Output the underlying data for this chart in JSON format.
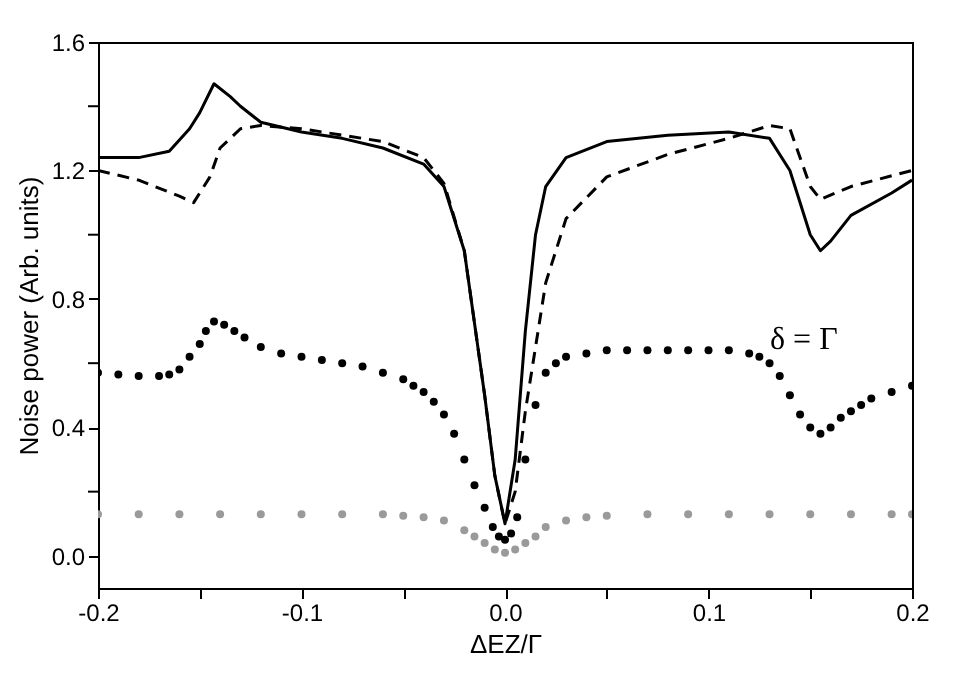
{
  "chart_data": {
    "type": "line",
    "xlabel": "ΔEZ/Γ",
    "ylabel": "Noise power (Arb. units)",
    "annotations": [
      "δ = Γ"
    ],
    "xlim": [
      -0.2,
      0.2
    ],
    "ylim": [
      -0.1,
      1.6
    ],
    "xticks": [
      -0.2,
      {
        "value": -0.15,
        "label": null
      },
      -0.1,
      {
        "value": -0.05,
        "label": null
      },
      {
        "value": 0,
        "label": "0.0"
      },
      {
        "value": 0.05,
        "label": null
      },
      0.1,
      {
        "value": 0.15,
        "label": null
      },
      0.2
    ],
    "yticks": [
      {
        "value": 0,
        "label": "0.0"
      },
      {
        "value": 0.2,
        "label": null
      },
      0.4,
      {
        "value": 0.6,
        "label": null
      },
      0.8,
      {
        "value": 1.0,
        "label": null
      },
      1.2,
      {
        "value": 1.4,
        "label": null
      },
      1.6
    ],
    "grid": false,
    "series": [
      {
        "line_style": "solid",
        "color": "#000000",
        "x": [
          -0.2,
          -0.18,
          -0.165,
          -0.155,
          -0.15,
          -0.143,
          -0.135,
          -0.13,
          -0.12,
          -0.1,
          -0.08,
          -0.06,
          -0.04,
          -0.03,
          -0.02,
          -0.01,
          -0.005,
          0,
          0.005,
          0.01,
          0.015,
          0.02,
          0.03,
          0.05,
          0.08,
          0.11,
          0.13,
          0.14,
          0.15,
          0.155,
          0.16,
          0.17,
          0.19,
          0.2
        ],
        "values": [
          1.24,
          1.24,
          1.26,
          1.33,
          1.38,
          1.47,
          1.43,
          1.4,
          1.35,
          1.32,
          1.3,
          1.27,
          1.22,
          1.15,
          0.95,
          0.5,
          0.25,
          0.1,
          0.3,
          0.7,
          1.0,
          1.15,
          1.24,
          1.29,
          1.31,
          1.32,
          1.3,
          1.2,
          1.0,
          0.95,
          0.98,
          1.06,
          1.13,
          1.17
        ]
      },
      {
        "line_style": "dashed",
        "color": "#000000",
        "x": [
          -0.2,
          -0.18,
          -0.16,
          -0.153,
          -0.145,
          -0.14,
          -0.13,
          -0.12,
          -0.1,
          -0.08,
          -0.06,
          -0.04,
          -0.03,
          -0.02,
          -0.01,
          -0.005,
          0,
          0.005,
          0.01,
          0.02,
          0.03,
          0.05,
          0.08,
          0.11,
          0.13,
          0.14,
          0.15,
          0.155,
          0.17,
          0.2
        ],
        "values": [
          1.2,
          1.17,
          1.12,
          1.1,
          1.18,
          1.27,
          1.33,
          1.34,
          1.33,
          1.31,
          1.29,
          1.24,
          1.16,
          0.95,
          0.5,
          0.25,
          0.1,
          0.2,
          0.45,
          0.85,
          1.05,
          1.18,
          1.25,
          1.3,
          1.34,
          1.33,
          1.15,
          1.11,
          1.15,
          1.2
        ]
      },
      {
        "type": "scatter",
        "marker": "circle",
        "color": "#000000",
        "x": [
          -0.2,
          -0.19,
          -0.18,
          -0.17,
          -0.165,
          -0.16,
          -0.155,
          -0.15,
          -0.147,
          -0.143,
          -0.138,
          -0.133,
          -0.128,
          -0.12,
          -0.11,
          -0.1,
          -0.09,
          -0.08,
          -0.07,
          -0.06,
          -0.05,
          -0.045,
          -0.04,
          -0.035,
          -0.03,
          -0.025,
          -0.02,
          -0.015,
          -0.01,
          -0.006,
          -0.003,
          0,
          0.003,
          0.006,
          0.01,
          0.015,
          0.02,
          0.025,
          0.03,
          0.04,
          0.05,
          0.06,
          0.07,
          0.08,
          0.09,
          0.1,
          0.11,
          0.12,
          0.125,
          0.13,
          0.135,
          0.14,
          0.145,
          0.15,
          0.155,
          0.16,
          0.165,
          0.17,
          0.175,
          0.18,
          0.19,
          0.2
        ],
        "values": [
          0.57,
          0.565,
          0.56,
          0.56,
          0.565,
          0.58,
          0.62,
          0.66,
          0.7,
          0.73,
          0.72,
          0.7,
          0.68,
          0.65,
          0.63,
          0.62,
          0.61,
          0.6,
          0.59,
          0.57,
          0.55,
          0.53,
          0.51,
          0.48,
          0.44,
          0.38,
          0.3,
          0.22,
          0.15,
          0.09,
          0.06,
          0.05,
          0.07,
          0.12,
          0.3,
          0.47,
          0.57,
          0.6,
          0.62,
          0.63,
          0.64,
          0.64,
          0.64,
          0.64,
          0.64,
          0.64,
          0.64,
          0.63,
          0.62,
          0.6,
          0.56,
          0.5,
          0.44,
          0.4,
          0.38,
          0.4,
          0.43,
          0.45,
          0.47,
          0.49,
          0.51,
          0.53
        ]
      },
      {
        "type": "scatter",
        "marker": "circle",
        "color": "#9a9a9a",
        "x": [
          -0.2,
          -0.18,
          -0.16,
          -0.14,
          -0.12,
          -0.1,
          -0.08,
          -0.06,
          -0.05,
          -0.04,
          -0.03,
          -0.02,
          -0.015,
          -0.01,
          -0.005,
          0,
          0.005,
          0.01,
          0.015,
          0.02,
          0.03,
          0.04,
          0.05,
          0.07,
          0.09,
          0.11,
          0.13,
          0.15,
          0.17,
          0.19,
          0.2
        ],
        "values": [
          0.13,
          0.13,
          0.13,
          0.13,
          0.13,
          0.13,
          0.13,
          0.13,
          0.125,
          0.12,
          0.11,
          0.08,
          0.06,
          0.04,
          0.02,
          0.01,
          0.02,
          0.04,
          0.06,
          0.09,
          0.11,
          0.12,
          0.125,
          0.13,
          0.13,
          0.13,
          0.13,
          0.13,
          0.13,
          0.13,
          0.13
        ]
      }
    ]
  }
}
